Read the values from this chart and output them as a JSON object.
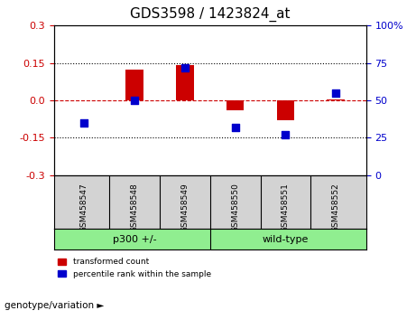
{
  "title": "GDS3598 / 1423824_at",
  "samples": [
    "GSM458547",
    "GSM458548",
    "GSM458549",
    "GSM458550",
    "GSM458551",
    "GSM458552"
  ],
  "groups": [
    "p300 +/-",
    "p300 +/-",
    "p300 +/-",
    "wild-type",
    "wild-type",
    "wild-type"
  ],
  "group_labels": [
    "p300 +/-",
    "wild-type"
  ],
  "group_colors": [
    "#90EE90",
    "#90EE90"
  ],
  "transformed_counts": [
    0.0,
    0.125,
    0.14,
    -0.04,
    -0.08,
    0.005
  ],
  "percentile_ranks": [
    35,
    50,
    72,
    32,
    27,
    55
  ],
  "bar_color": "#CC0000",
  "dot_color": "#0000CC",
  "ylim_left": [
    -0.3,
    0.3
  ],
  "ylim_right": [
    0,
    100
  ],
  "yticks_left": [
    -0.3,
    -0.15,
    0.0,
    0.15,
    0.3
  ],
  "yticks_right": [
    0,
    25,
    50,
    75,
    100
  ],
  "hline_y": 0.0,
  "hline_color": "#CC0000",
  "dotted_lines": [
    -0.15,
    0.15
  ],
  "background_color": "#ffffff",
  "plot_bg_color": "#ffffff",
  "sample_bg_color": "#D3D3D3",
  "legend_items": [
    "transformed count",
    "percentile rank within the sample"
  ],
  "xlabel": "genotype/variation",
  "bar_width": 0.35
}
